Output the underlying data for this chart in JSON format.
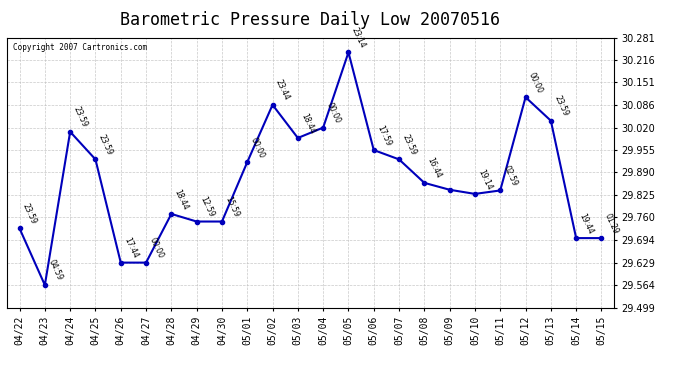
{
  "title": "Barometric Pressure Daily Low 20070516",
  "copyright": "Copyright 2007 Cartronics.com",
  "x_labels": [
    "04/22",
    "04/23",
    "04/24",
    "04/25",
    "04/26",
    "04/27",
    "04/28",
    "04/29",
    "04/30",
    "05/01",
    "05/02",
    "05/03",
    "05/04",
    "05/05",
    "05/06",
    "05/07",
    "05/08",
    "05/09",
    "05/10",
    "05/11",
    "05/12",
    "05/13",
    "05/14",
    "05/15"
  ],
  "points": [
    [
      0,
      29.728,
      "23:59"
    ],
    [
      1,
      29.564,
      "04:59"
    ],
    [
      2,
      30.008,
      "23:59"
    ],
    [
      3,
      29.928,
      "23:59"
    ],
    [
      4,
      29.629,
      "17:44"
    ],
    [
      5,
      29.629,
      "00:00"
    ],
    [
      6,
      29.77,
      "18:44"
    ],
    [
      7,
      29.748,
      "12:59"
    ],
    [
      8,
      29.748,
      "15:59"
    ],
    [
      9,
      29.92,
      "00:00"
    ],
    [
      10,
      30.086,
      "23:44"
    ],
    [
      11,
      29.99,
      "18:44"
    ],
    [
      12,
      30.02,
      "00:00"
    ],
    [
      13,
      30.238,
      "23:14"
    ],
    [
      14,
      29.955,
      "17:59"
    ],
    [
      15,
      29.928,
      "23:59"
    ],
    [
      16,
      29.86,
      "16:44"
    ],
    [
      17,
      29.84,
      ""
    ],
    [
      18,
      29.828,
      "19:14"
    ],
    [
      19,
      29.838,
      "02:59"
    ],
    [
      20,
      30.108,
      "00:00"
    ],
    [
      21,
      30.04,
      "23:59"
    ],
    [
      22,
      29.7,
      "19:44"
    ],
    [
      23,
      29.7,
      "01:29"
    ]
  ],
  "ylim_min": 29.499,
  "ylim_max": 30.281,
  "yticks": [
    29.499,
    29.564,
    29.629,
    29.694,
    29.76,
    29.825,
    29.89,
    29.955,
    30.02,
    30.086,
    30.151,
    30.216,
    30.281
  ],
  "line_color": "#0000bb",
  "bg_color": "#ffffff",
  "grid_color": "#bbbbbb",
  "title_fontsize": 12,
  "tick_fontsize": 7,
  "annot_fontsize": 5.5
}
